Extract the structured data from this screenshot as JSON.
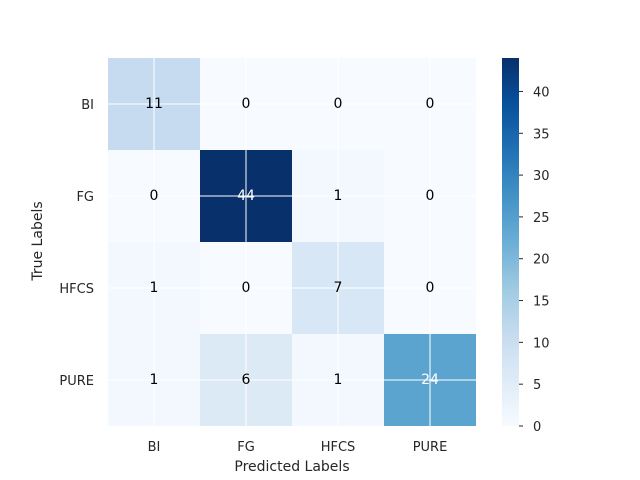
{
  "chart_data": {
    "type": "heatmap",
    "title": "",
    "xlabel": "Predicted Labels",
    "ylabel": "True Labels",
    "x_categories": [
      "BI",
      "FG",
      "HFCS",
      "PURE"
    ],
    "y_categories": [
      "BI",
      "FG",
      "HFCS",
      "PURE"
    ],
    "values": [
      [
        11,
        0,
        0,
        0
      ],
      [
        0,
        44,
        1,
        0
      ],
      [
        1,
        0,
        7,
        0
      ],
      [
        1,
        6,
        1,
        24
      ]
    ],
    "colorbar": {
      "min": 0,
      "max": 44,
      "ticks": [
        0,
        5,
        10,
        15,
        20,
        25,
        30,
        35,
        40
      ]
    },
    "colormap": "Blues",
    "grid": true
  }
}
